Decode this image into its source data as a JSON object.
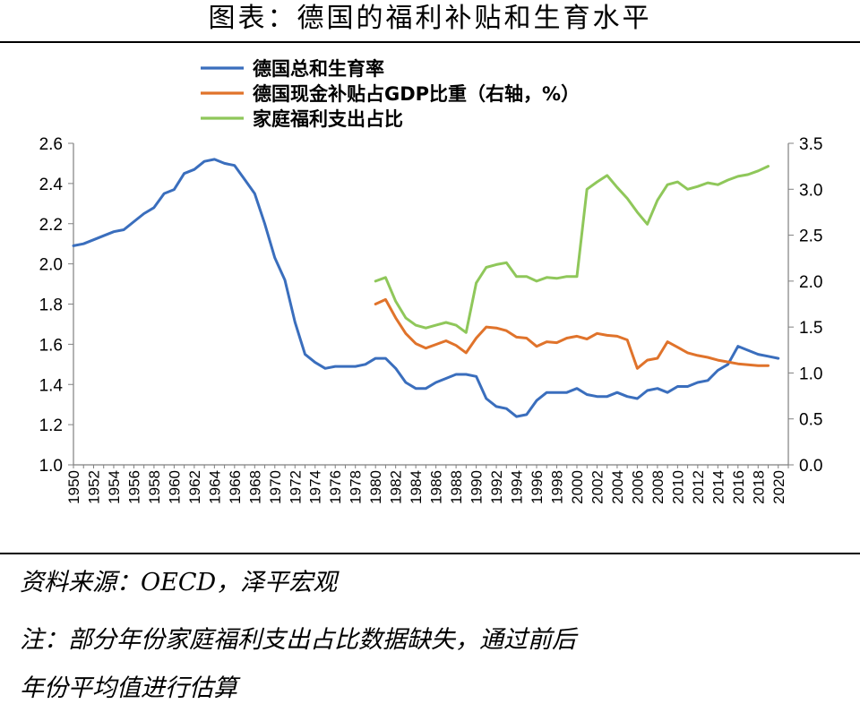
{
  "header": {
    "title": "图表：德国的福利补贴和生育水平"
  },
  "footer": {
    "source": "资料来源：OECD，泽平宏观",
    "note_line1": "注：部分年份家庭福利支出占比数据缺失，通过前后",
    "note_line2": "年份平均值进行估算"
  },
  "chart_data": {
    "type": "line",
    "x_ticks": [
      "1950",
      "1952",
      "1954",
      "1956",
      "1958",
      "1960",
      "1962",
      "1964",
      "1966",
      "1968",
      "1970",
      "1972",
      "1974",
      "1976",
      "1978",
      "1980",
      "1982",
      "1984",
      "1986",
      "1988",
      "1990",
      "1992",
      "1994",
      "1996",
      "1998",
      "2000",
      "2002",
      "2004",
      "2006",
      "2008",
      "2010",
      "2012",
      "2014",
      "2016",
      "2018",
      "2020"
    ],
    "x_range": [
      1950,
      2021
    ],
    "y_left": {
      "ticks": [
        "1.0",
        "1.2",
        "1.4",
        "1.6",
        "1.8",
        "2.0",
        "2.2",
        "2.4",
        "2.6"
      ],
      "range": [
        1.0,
        2.6
      ]
    },
    "y_right": {
      "ticks": [
        "0.0",
        "0.5",
        "1.0",
        "1.5",
        "2.0",
        "2.5",
        "3.0",
        "3.5"
      ],
      "range": [
        0.0,
        3.5
      ]
    },
    "legend_position": "top-left",
    "series": [
      {
        "name": "德国总和生育率",
        "axis": "left",
        "color": "#3A6EBD",
        "x": [
          1950,
          1951,
          1952,
          1953,
          1954,
          1955,
          1956,
          1957,
          1958,
          1959,
          1960,
          1961,
          1962,
          1963,
          1964,
          1965,
          1966,
          1967,
          1968,
          1969,
          1970,
          1971,
          1972,
          1973,
          1974,
          1975,
          1976,
          1977,
          1978,
          1979,
          1980,
          1981,
          1982,
          1983,
          1984,
          1985,
          1986,
          1987,
          1988,
          1989,
          1990,
          1991,
          1992,
          1993,
          1994,
          1995,
          1996,
          1997,
          1998,
          1999,
          2000,
          2001,
          2002,
          2003,
          2004,
          2005,
          2006,
          2007,
          2008,
          2009,
          2010,
          2011,
          2012,
          2013,
          2014,
          2015,
          2016,
          2017,
          2018,
          2019,
          2020
        ],
        "values": [
          2.09,
          2.1,
          2.12,
          2.14,
          2.16,
          2.17,
          2.21,
          2.25,
          2.28,
          2.35,
          2.37,
          2.45,
          2.47,
          2.51,
          2.52,
          2.5,
          2.49,
          2.42,
          2.35,
          2.2,
          2.03,
          1.92,
          1.71,
          1.55,
          1.51,
          1.48,
          1.49,
          1.49,
          1.49,
          1.5,
          1.53,
          1.53,
          1.48,
          1.41,
          1.38,
          1.38,
          1.41,
          1.43,
          1.45,
          1.45,
          1.44,
          1.33,
          1.29,
          1.28,
          1.24,
          1.25,
          1.32,
          1.36,
          1.36,
          1.36,
          1.38,
          1.35,
          1.34,
          1.34,
          1.36,
          1.34,
          1.33,
          1.37,
          1.38,
          1.36,
          1.39,
          1.39,
          1.41,
          1.42,
          1.47,
          1.5,
          1.59,
          1.57,
          1.55,
          1.54,
          1.53
        ]
      },
      {
        "name": "德国现金补贴占GDP比重（右轴，%）",
        "axis": "right",
        "color": "#E0732B",
        "x": [
          1980,
          1981,
          1982,
          1983,
          1984,
          1985,
          1986,
          1987,
          1988,
          1989,
          1990,
          1991,
          1992,
          1993,
          1994,
          1995,
          1996,
          1997,
          1998,
          1999,
          2000,
          2001,
          2002,
          2003,
          2004,
          2005,
          2006,
          2007,
          2008,
          2009,
          2010,
          2011,
          2012,
          2013,
          2014,
          2015,
          2016,
          2017,
          2018,
          2019
        ],
        "values": [
          1.75,
          1.8,
          1.6,
          1.43,
          1.32,
          1.27,
          1.31,
          1.35,
          1.3,
          1.22,
          1.38,
          1.5,
          1.49,
          1.46,
          1.39,
          1.38,
          1.29,
          1.34,
          1.33,
          1.38,
          1.4,
          1.37,
          1.43,
          1.41,
          1.4,
          1.36,
          1.05,
          1.14,
          1.16,
          1.34,
          1.28,
          1.22,
          1.19,
          1.17,
          1.14,
          1.12,
          1.1,
          1.09,
          1.08,
          1.08
        ]
      },
      {
        "name": "家庭福利支出占比",
        "axis": "right",
        "color": "#8FC75A",
        "x": [
          1980,
          1981,
          1982,
          1983,
          1984,
          1985,
          1986,
          1987,
          1988,
          1989,
          1990,
          1991,
          1992,
          1993,
          1994,
          1995,
          1996,
          1997,
          1998,
          1999,
          2000,
          2001,
          2002,
          2003,
          2004,
          2005,
          2006,
          2007,
          2008,
          2009,
          2010,
          2011,
          2012,
          2013,
          2014,
          2015,
          2016,
          2017,
          2018,
          2019
        ],
        "values": [
          2.0,
          2.04,
          1.78,
          1.6,
          1.52,
          1.49,
          1.52,
          1.55,
          1.52,
          1.44,
          1.98,
          2.15,
          2.18,
          2.2,
          2.05,
          2.05,
          2.0,
          2.04,
          2.03,
          2.05,
          2.05,
          3.0,
          3.08,
          3.15,
          3.02,
          2.9,
          2.75,
          2.62,
          2.88,
          3.05,
          3.08,
          3.0,
          3.03,
          3.07,
          3.05,
          3.1,
          3.14,
          3.16,
          3.2,
          3.25
        ]
      }
    ]
  }
}
